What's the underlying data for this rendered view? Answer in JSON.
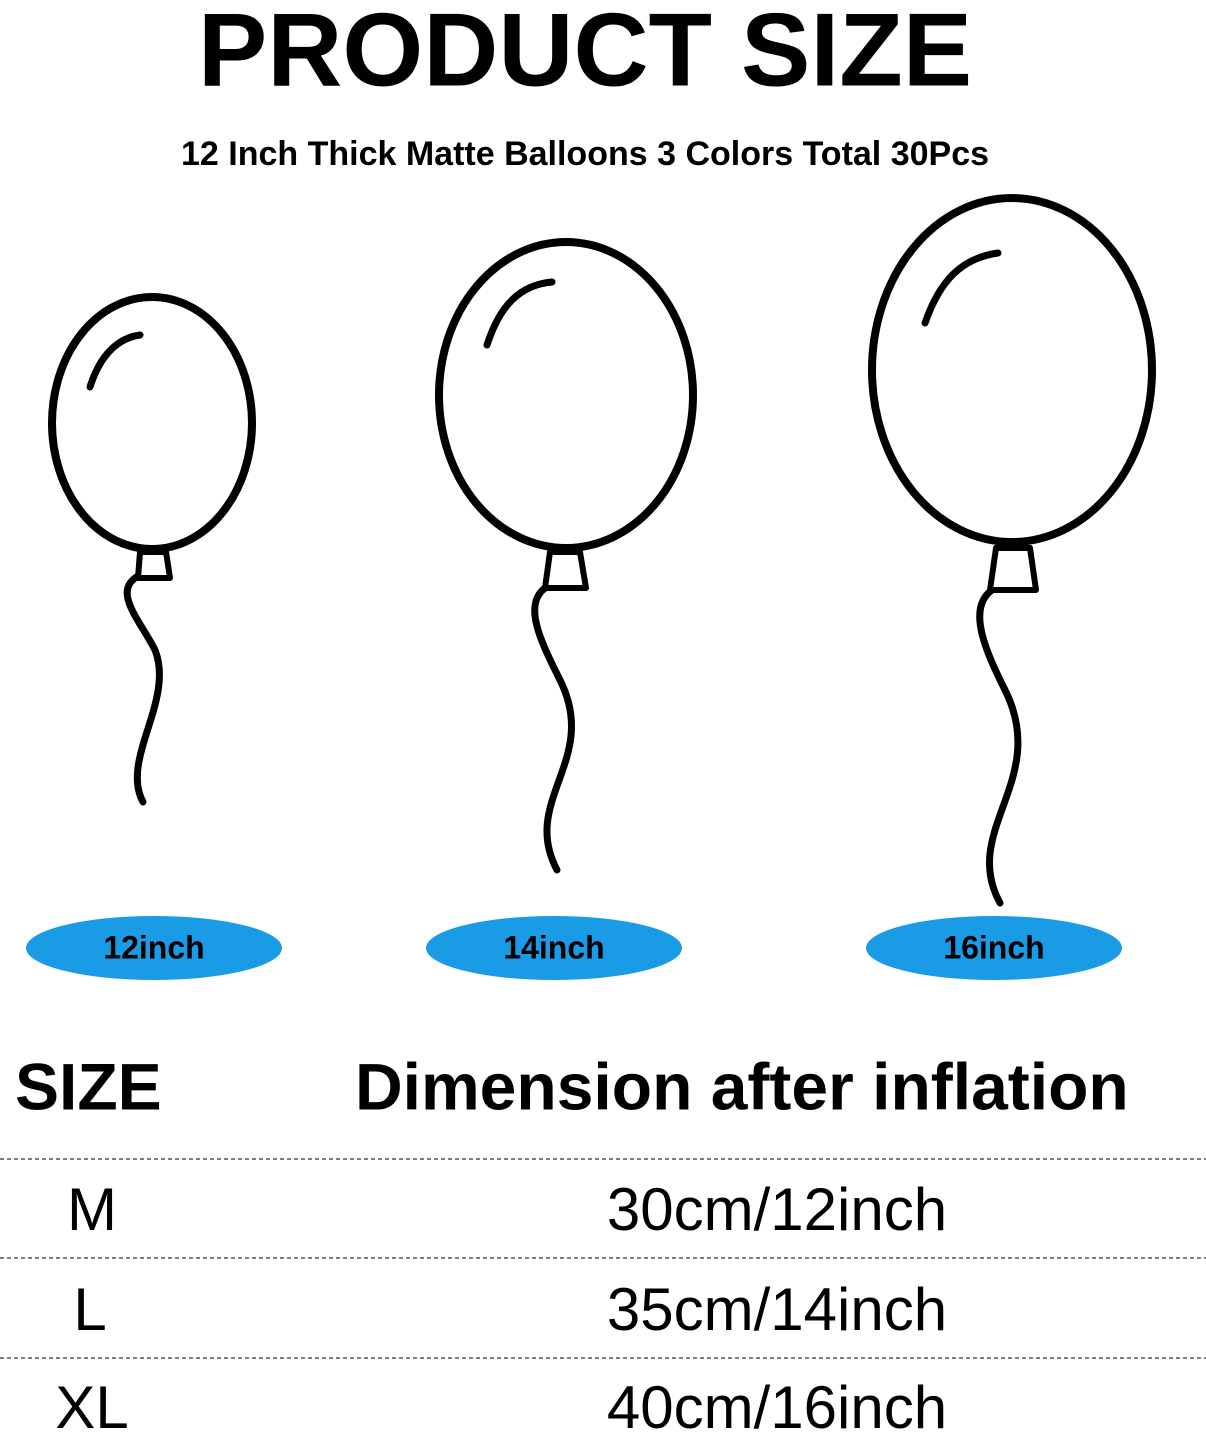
{
  "header": {
    "title": "PRODUCT SIZE",
    "subtitle": "12 Inch Thick Matte Balloons 3 Colors Total 30Pcs"
  },
  "balloons": [
    {
      "label": "12inch"
    },
    {
      "label": "14inch"
    },
    {
      "label": "16inch"
    }
  ],
  "table": {
    "headers": [
      "SIZE",
      "Dimension after inflation"
    ],
    "rows": [
      [
        "M",
        "30cm/12inch"
      ],
      [
        "L",
        "35cm/14inch"
      ],
      [
        "XL",
        "40cm/16inch"
      ]
    ]
  }
}
